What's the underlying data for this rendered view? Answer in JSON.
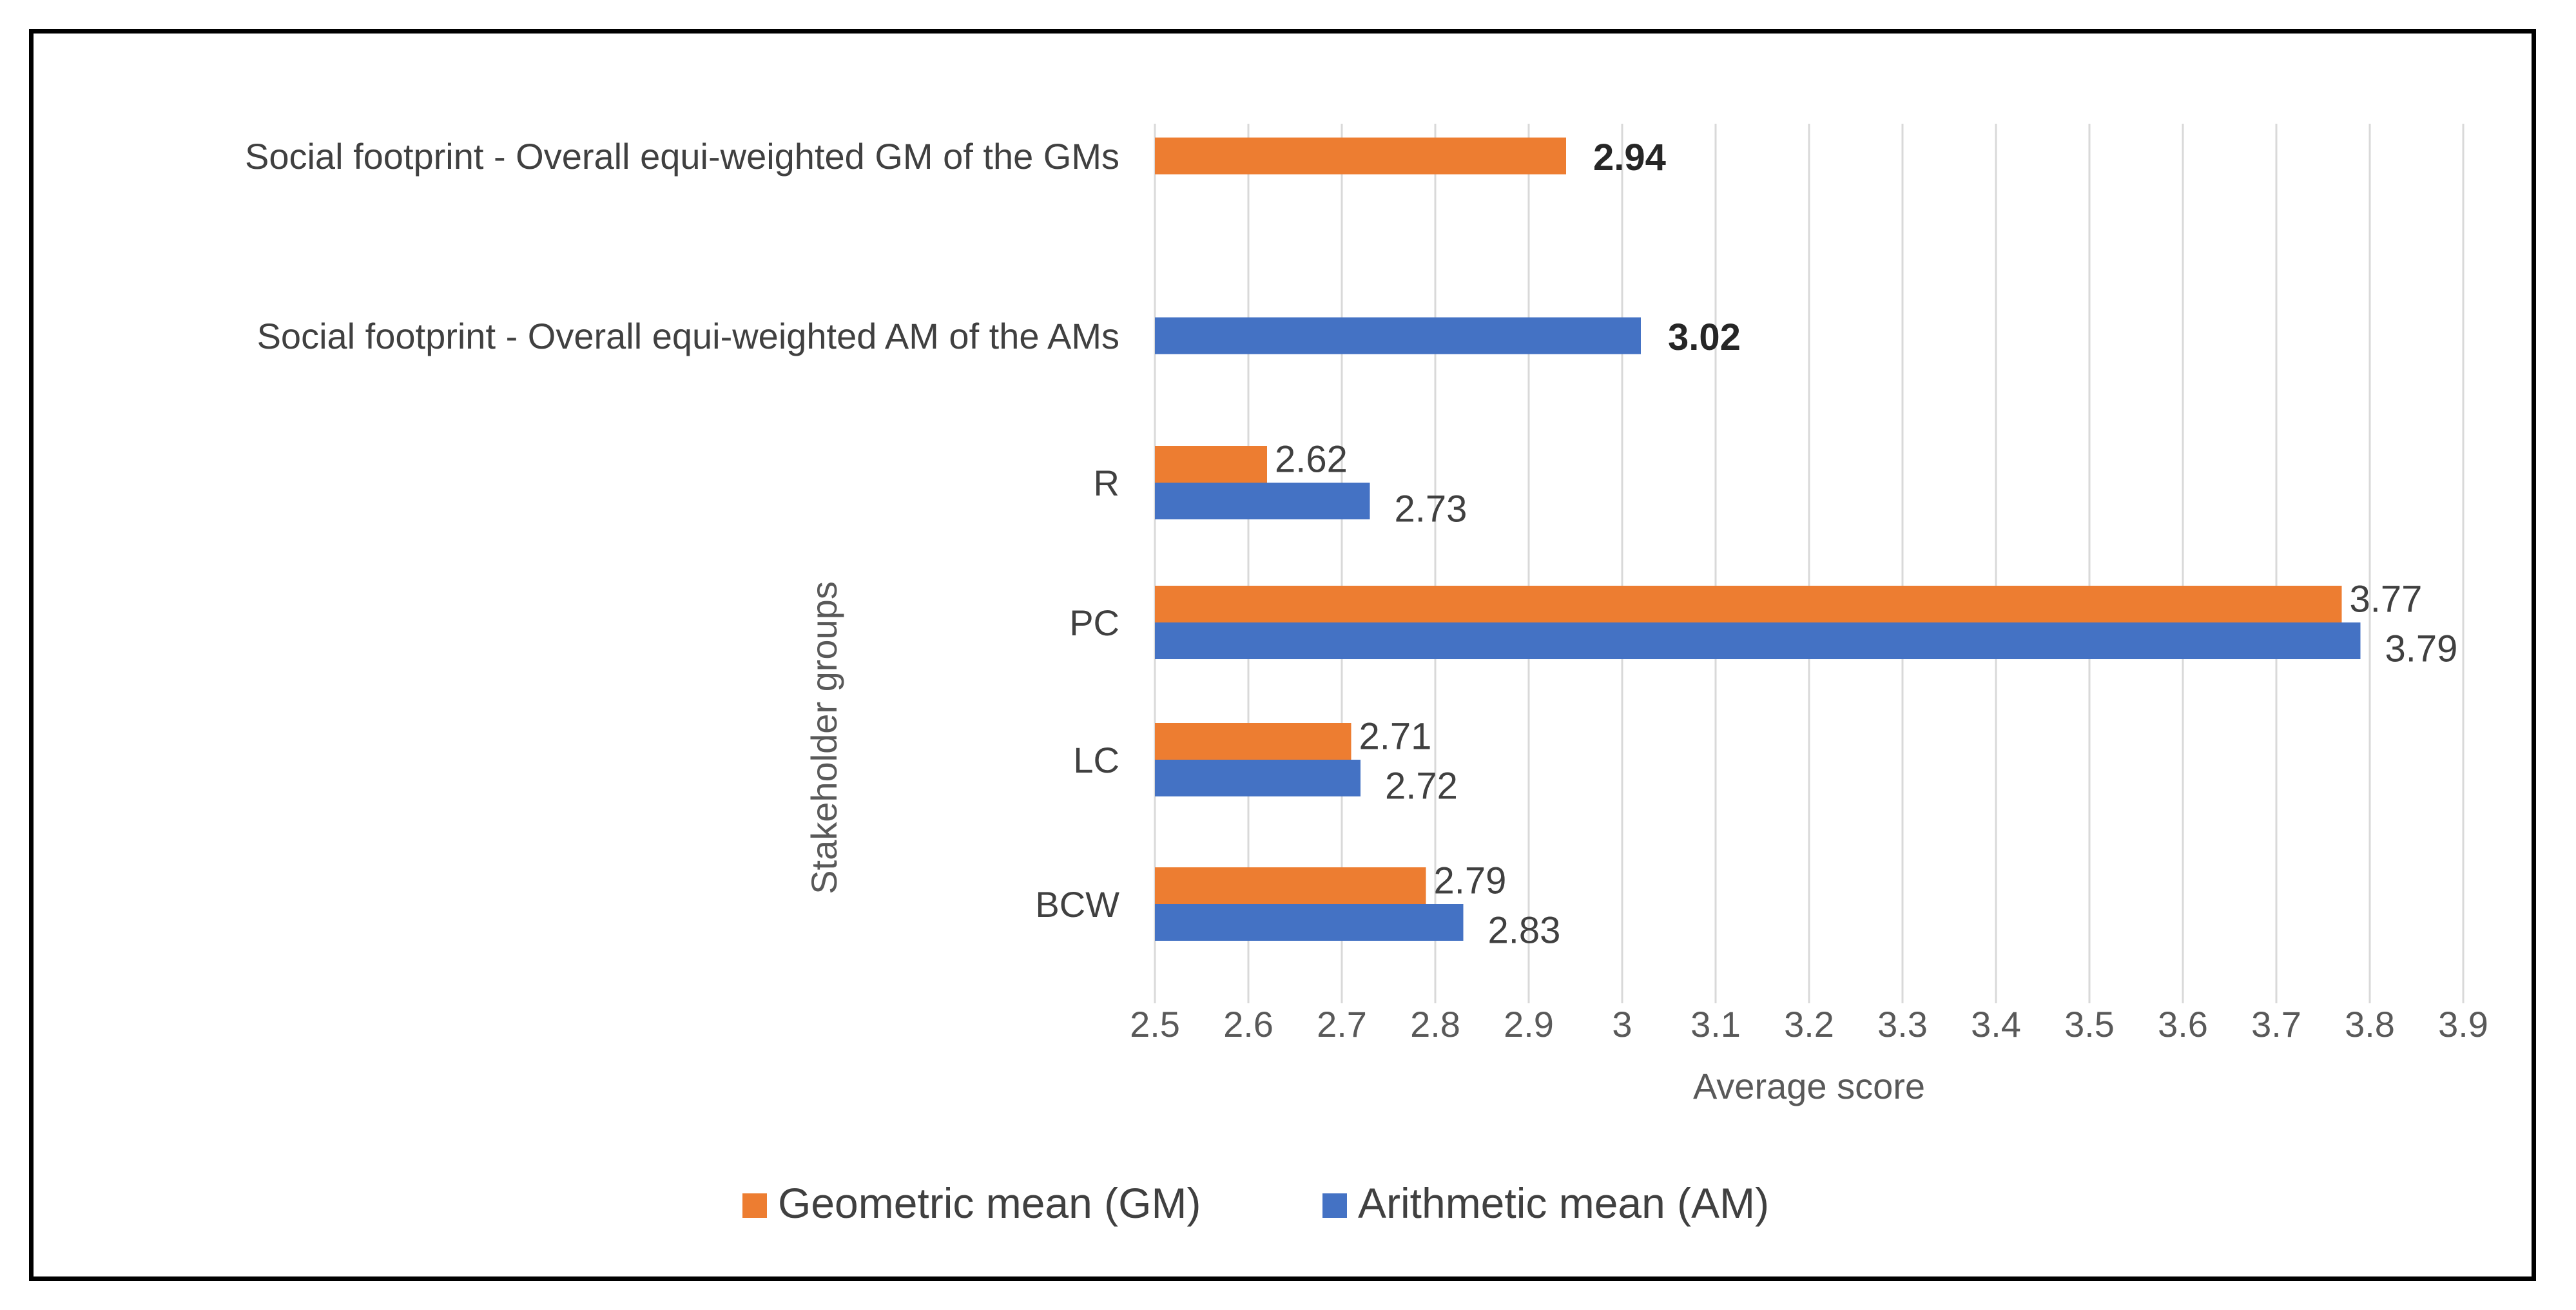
{
  "chart_data": {
    "type": "bar",
    "orientation": "horizontal",
    "title": "",
    "xlabel": "Average score",
    "ylabel": "Stakeholder groups",
    "xlim": [
      2.5,
      3.9
    ],
    "xticks": [
      "2.5",
      "2.6",
      "2.7",
      "2.8",
      "2.9",
      "3",
      "3.1",
      "3.2",
      "3.3",
      "3.4",
      "3.5",
      "3.6",
      "3.7",
      "3.8",
      "3.9"
    ],
    "grid": true,
    "legend_position": "bottom",
    "categories": [
      "Social footprint - Overall equi-weighted GM of the GMs",
      "Social footprint - Overall equi-weighted AM of the AMs",
      "R",
      "PC",
      "LC",
      "BCW"
    ],
    "series": [
      {
        "name": "Geometric mean (GM)",
        "color": "#ED7D31",
        "values": [
          2.94,
          null,
          2.62,
          3.77,
          2.71,
          2.79
        ],
        "labels": [
          "2.94",
          "",
          "2.62",
          "3.77",
          "2.71",
          "2.79"
        ]
      },
      {
        "name": "Arithmetic mean (AM)",
        "color": "#4472C4",
        "values": [
          null,
          3.02,
          2.73,
          3.79,
          2.72,
          2.83
        ],
        "labels": [
          "",
          "3.02",
          "2.73",
          "3.79",
          "2.72",
          "2.83"
        ]
      }
    ],
    "bold_labels": [
      "2.94",
      "3.02"
    ]
  }
}
